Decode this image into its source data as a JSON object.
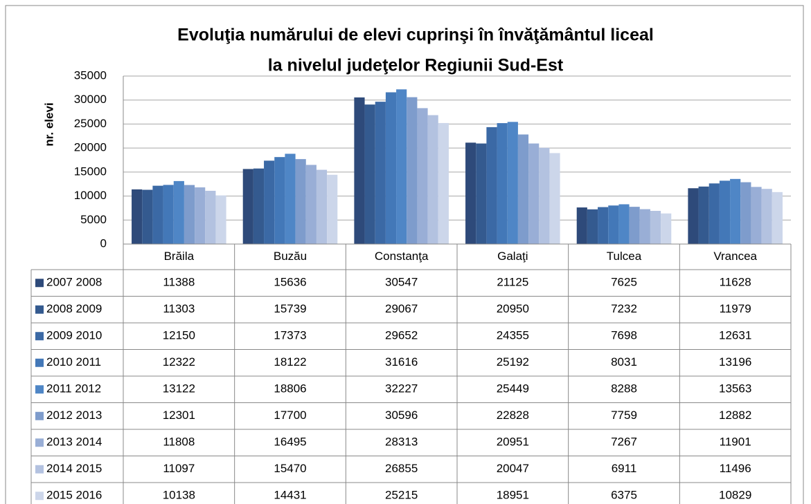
{
  "chart_data": {
    "type": "bar",
    "title": [
      "Evoluţia numărului de elevi cuprinşi în învăţământul liceal",
      "la nivelul judeţelor Regiunii Sud-Est"
    ],
    "y_label": "nr. elevi",
    "categories": [
      "Brăila",
      "Buzău",
      "Constanţa",
      "Galaţi",
      "Tulcea",
      "Vrancea"
    ],
    "series": [
      {
        "name": "2007 2008",
        "color": "#2e4a7a",
        "values": [
          11388,
          15636,
          30547,
          21125,
          7625,
          11628
        ]
      },
      {
        "name": "2008 2009",
        "color": "#345a8f",
        "values": [
          11303,
          15739,
          29067,
          20950,
          7232,
          11979
        ]
      },
      {
        "name": "2009 2010",
        "color": "#3b69a5",
        "values": [
          12150,
          17373,
          29652,
          24355,
          7698,
          12631
        ]
      },
      {
        "name": "2010 2011",
        "color": "#4378b8",
        "values": [
          12322,
          18122,
          31616,
          25192,
          8031,
          13196
        ]
      },
      {
        "name": "2011 2012",
        "color": "#4f86c6",
        "values": [
          13122,
          18806,
          32227,
          25449,
          8288,
          13563
        ]
      },
      {
        "name": "2012 2013",
        "color": "#7e9ccc",
        "values": [
          12301,
          17700,
          30596,
          22828,
          7759,
          12882
        ]
      },
      {
        "name": "2013 2014",
        "color": "#99aed6",
        "values": [
          11808,
          16495,
          28313,
          20951,
          7267,
          11901
        ]
      },
      {
        "name": "2014 2015",
        "color": "#b3c2e0",
        "values": [
          11097,
          15470,
          26855,
          20047,
          6911,
          11496
        ]
      },
      {
        "name": "2015 2016",
        "color": "#ccd6ea",
        "values": [
          10138,
          14431,
          25215,
          18951,
          6375,
          10829
        ]
      }
    ],
    "ylim": [
      0,
      35000
    ],
    "yticks": [
      0,
      5000,
      10000,
      15000,
      20000,
      25000,
      30000,
      35000
    ],
    "grid": true
  }
}
